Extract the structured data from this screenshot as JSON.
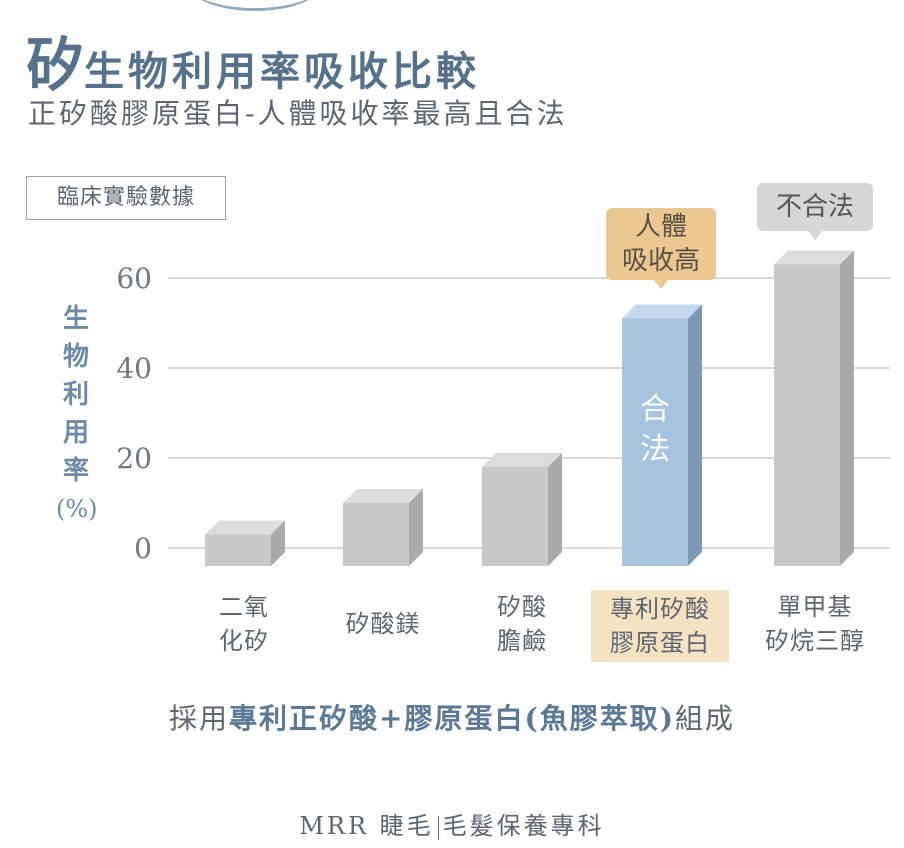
{
  "header": {
    "title_lead": "矽",
    "title_rest": "生物利用率吸收比較",
    "subtitle": "正矽酸膠原蛋白-人體吸收率最高且合法",
    "data_label": "臨床實驗數據"
  },
  "y_axis_label_lines": [
    "生",
    "物",
    "利",
    "用",
    "率"
  ],
  "y_axis_unit": "(%)",
  "callouts": {
    "absorb_line1": "人體",
    "absorb_line2": "吸收高",
    "illegal": "不合法"
  },
  "bar_inner_label": {
    "line1": "合",
    "line2": "法"
  },
  "category_labels": [
    {
      "line1": "二氧",
      "line2": "化矽"
    },
    {
      "line1": "矽酸鎂",
      "line2": ""
    },
    {
      "line1": "矽酸",
      "line2": "膽鹼"
    },
    {
      "line1": "專利矽酸",
      "line2": "膠原蛋白"
    },
    {
      "line1": "單甲基",
      "line2": "矽烷三醇"
    }
  ],
  "footer": {
    "prefix": "採用",
    "accent": "專利正矽酸+膠原蛋白(魚膠萃取)",
    "suffix": "組成"
  },
  "brand": {
    "left": "MRR 睫毛",
    "right": "毛髮保養專科"
  },
  "chart_data": {
    "type": "bar",
    "categories": [
      "二氧化矽",
      "矽酸鎂",
      "矽酸膽鹼",
      "專利矽酸膠原蛋白",
      "單甲基矽烷三醇"
    ],
    "values": [
      3,
      10,
      18,
      51,
      63
    ],
    "yticks": [
      0,
      20,
      40,
      60
    ],
    "ylim": [
      0,
      64
    ],
    "ylabel": "生物利用率(%)",
    "grid": true,
    "highlight_index": 3,
    "colors": {
      "bar": "#c9c9c9",
      "bar_top": "#dcdcdc",
      "bar_side": "#a9a9a9",
      "highlight": "#a6c4e0",
      "highlight_top": "#c4d9ee",
      "highlight_side": "#7f98b5",
      "grid": "#b0b0b0",
      "tick_text": "#6f7780"
    }
  }
}
